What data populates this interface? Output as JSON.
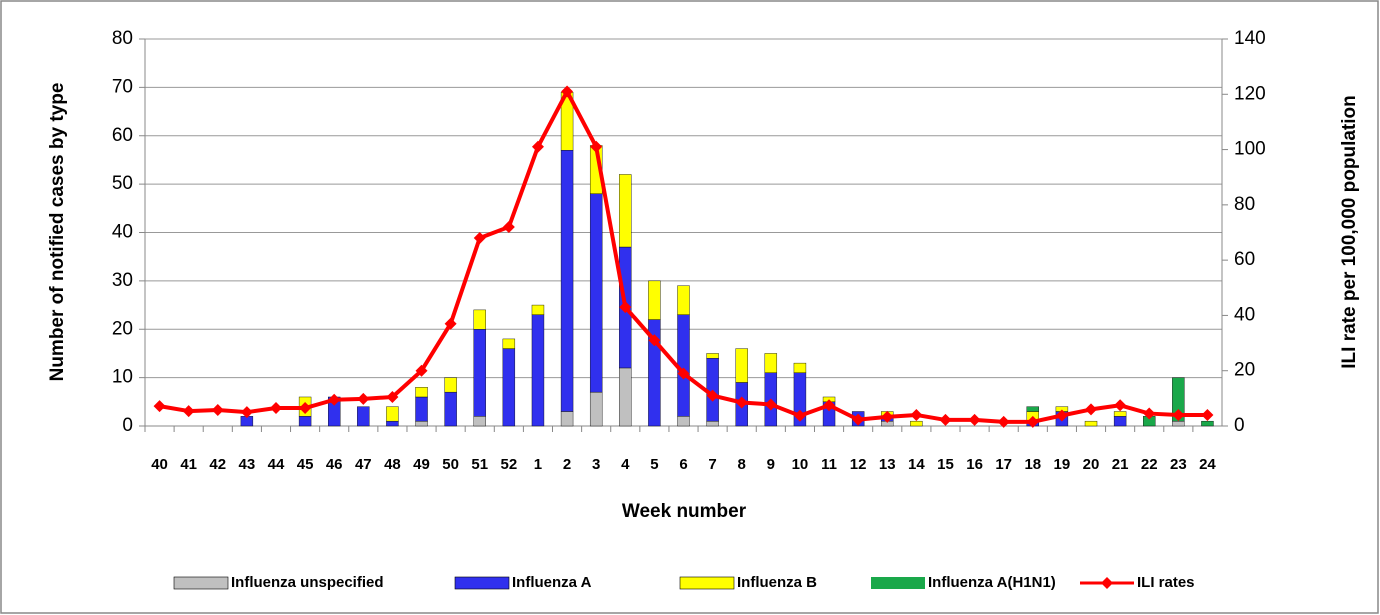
{
  "chart_data": {
    "type": "bar",
    "stacked": true,
    "x_label": "Week number",
    "y_label": "Number of notified cases by type",
    "y2_label": "ILI rate per 100,000 population",
    "categories": [
      "40",
      "41",
      "42",
      "43",
      "44",
      "45",
      "46",
      "47",
      "48",
      "49",
      "50",
      "51",
      "52",
      "1",
      "2",
      "3",
      "4",
      "5",
      "6",
      "7",
      "8",
      "9",
      "10",
      "11",
      "12",
      "13",
      "14",
      "15",
      "16",
      "17",
      "18",
      "19",
      "20",
      "21",
      "22",
      "23",
      "24"
    ],
    "ylim": [
      0,
      80
    ],
    "yticks": [
      0,
      10,
      20,
      30,
      40,
      50,
      60,
      70,
      80
    ],
    "y2lim": [
      0,
      140
    ],
    "y2ticks": [
      0,
      20,
      40,
      60,
      80,
      100,
      120,
      140
    ],
    "grid": true,
    "series": [
      {
        "name": "Influenza unspecified",
        "color": "#c0c0c0",
        "values": [
          0,
          0,
          0,
          0,
          0,
          0,
          0,
          0,
          0,
          1,
          0,
          2,
          0,
          0,
          3,
          7,
          12,
          0,
          2,
          1,
          0,
          0,
          0,
          0,
          0,
          1,
          0,
          0,
          0,
          0,
          0,
          0,
          0,
          0,
          0,
          1,
          0
        ]
      },
      {
        "name": "Influenza A",
        "color": "#3030ee",
        "values": [
          0,
          0,
          0,
          2,
          0,
          2,
          6,
          4,
          1,
          5,
          7,
          18,
          16,
          23,
          54,
          41,
          25,
          22,
          21,
          13,
          9,
          11,
          11,
          5,
          3,
          1,
          0,
          0,
          0,
          0,
          1,
          3,
          0,
          2,
          0,
          0,
          0
        ]
      },
      {
        "name": "Influenza B",
        "color": "#ffff00",
        "values": [
          0,
          0,
          0,
          0,
          0,
          4,
          0,
          0,
          3,
          2,
          3,
          4,
          2,
          2,
          12,
          10,
          15,
          8,
          6,
          1,
          7,
          4,
          2,
          1,
          0,
          1,
          1,
          0,
          0,
          0,
          2,
          1,
          1,
          1,
          0,
          0,
          0
        ]
      },
      {
        "name": "Influenza A(H1N1)",
        "color": "#1aa84a",
        "values": [
          0,
          0,
          0,
          0,
          0,
          0,
          0,
          0,
          0,
          0,
          0,
          0,
          0,
          0,
          0,
          0,
          0,
          0,
          0,
          0,
          0,
          0,
          0,
          0,
          0,
          0,
          0,
          0,
          0,
          0,
          1,
          0,
          0,
          0,
          2,
          9,
          1
        ]
      },
      {
        "name": "ILI rates",
        "color": "#ff0000",
        "type": "line",
        "axis": "y2",
        "values": [
          7.2,
          5.4,
          5.8,
          5,
          6.5,
          6.5,
          9.5,
          9.8,
          10.5,
          20,
          37,
          68,
          72,
          101,
          121,
          101,
          43,
          31,
          19,
          11,
          8.5,
          7.8,
          3.7,
          7.5,
          2.3,
          3.3,
          4,
          2.2,
          2.2,
          1.5,
          1.5,
          3.8,
          6,
          7.5,
          4.5,
          4,
          4
        ]
      }
    ]
  }
}
